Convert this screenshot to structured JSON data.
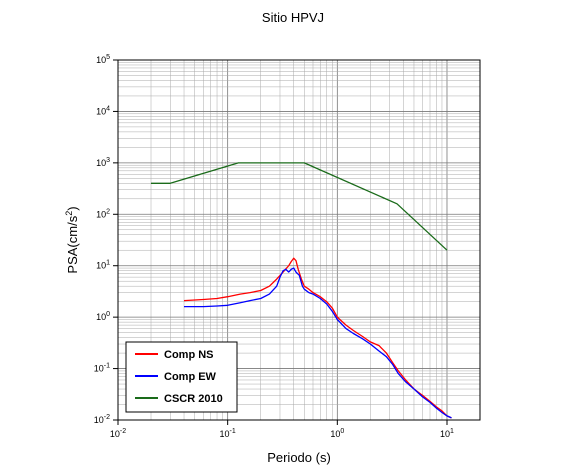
{
  "chart_data": {
    "type": "line",
    "title": "Sitio HPVJ",
    "xlabel": "Periodo (s)",
    "ylabel_base": "PSA(cm/s",
    "ylabel_sup": "2",
    "ylabel_tail": ")",
    "xscale": "log",
    "yscale": "log",
    "xlim": [
      0.01,
      20
    ],
    "ylim": [
      0.01,
      100000
    ],
    "grid": true,
    "legend_position": "bottom-left",
    "xticks": [
      {
        "value": 0.01,
        "base": "10",
        "exp": "-2"
      },
      {
        "value": 0.1,
        "base": "10",
        "exp": "-1"
      },
      {
        "value": 1,
        "base": "10",
        "exp": "0"
      },
      {
        "value": 10,
        "base": "10",
        "exp": "1"
      }
    ],
    "yticks": [
      {
        "value": 0.01,
        "base": "10",
        "exp": "-2"
      },
      {
        "value": 0.1,
        "base": "10",
        "exp": "-1"
      },
      {
        "value": 1,
        "base": "10",
        "exp": "0"
      },
      {
        "value": 10,
        "base": "10",
        "exp": "1"
      },
      {
        "value": 100,
        "base": "10",
        "exp": "2"
      },
      {
        "value": 1000,
        "base": "10",
        "exp": "3"
      },
      {
        "value": 10000,
        "base": "10",
        "exp": "4"
      },
      {
        "value": 100000,
        "base": "10",
        "exp": "5"
      }
    ],
    "series": [
      {
        "name": "Comp NS",
        "color": "#ff0000",
        "x": [
          0.04,
          0.06,
          0.08,
          0.1,
          0.13,
          0.16,
          0.2,
          0.24,
          0.28,
          0.32,
          0.36,
          0.38,
          0.4,
          0.42,
          0.44,
          0.47,
          0.5,
          0.55,
          0.6,
          0.7,
          0.8,
          0.9,
          1.0,
          1.2,
          1.4,
          1.7,
          2.0,
          2.4,
          2.8,
          3.2,
          3.6,
          4.2,
          5.0,
          6.0,
          7.0,
          8.0,
          9.0,
          10.0,
          11.0
        ],
        "y": [
          2.1,
          2.2,
          2.3,
          2.5,
          2.8,
          3.0,
          3.3,
          4.0,
          5.5,
          7.5,
          10.0,
          12.0,
          14.0,
          12.5,
          8.5,
          5.5,
          4.0,
          3.5,
          3.0,
          2.5,
          2.0,
          1.5,
          1.0,
          0.7,
          0.55,
          0.42,
          0.33,
          0.28,
          0.2,
          0.13,
          0.09,
          0.06,
          0.04,
          0.03,
          0.023,
          0.018,
          0.015,
          0.012,
          0.011
        ]
      },
      {
        "name": "Comp EW",
        "color": "#0000ff",
        "x": [
          0.04,
          0.06,
          0.08,
          0.1,
          0.13,
          0.16,
          0.2,
          0.24,
          0.28,
          0.3,
          0.32,
          0.34,
          0.36,
          0.38,
          0.4,
          0.42,
          0.45,
          0.48,
          0.5,
          0.55,
          0.6,
          0.7,
          0.8,
          0.9,
          1.0,
          1.2,
          1.4,
          1.7,
          2.0,
          2.4,
          2.8,
          3.2,
          3.6,
          4.2,
          5.0,
          6.0,
          7.0,
          8.0,
          9.0,
          10.0,
          11.0
        ],
        "y": [
          1.6,
          1.6,
          1.65,
          1.7,
          1.9,
          2.1,
          2.3,
          2.8,
          4.0,
          6.0,
          8.0,
          8.5,
          7.5,
          8.5,
          9.0,
          7.5,
          6.5,
          4.0,
          3.5,
          3.0,
          2.8,
          2.3,
          1.8,
          1.3,
          0.9,
          0.6,
          0.48,
          0.38,
          0.3,
          0.22,
          0.17,
          0.12,
          0.08,
          0.055,
          0.04,
          0.028,
          0.022,
          0.017,
          0.014,
          0.012,
          0.011
        ]
      },
      {
        "name": "CSCR 2010",
        "color": "#1a6b1a",
        "x": [
          0.02,
          0.03,
          0.125,
          0.5,
          3.5,
          10.0
        ],
        "y": [
          400,
          400,
          1000,
          1000,
          160,
          20
        ]
      }
    ]
  }
}
